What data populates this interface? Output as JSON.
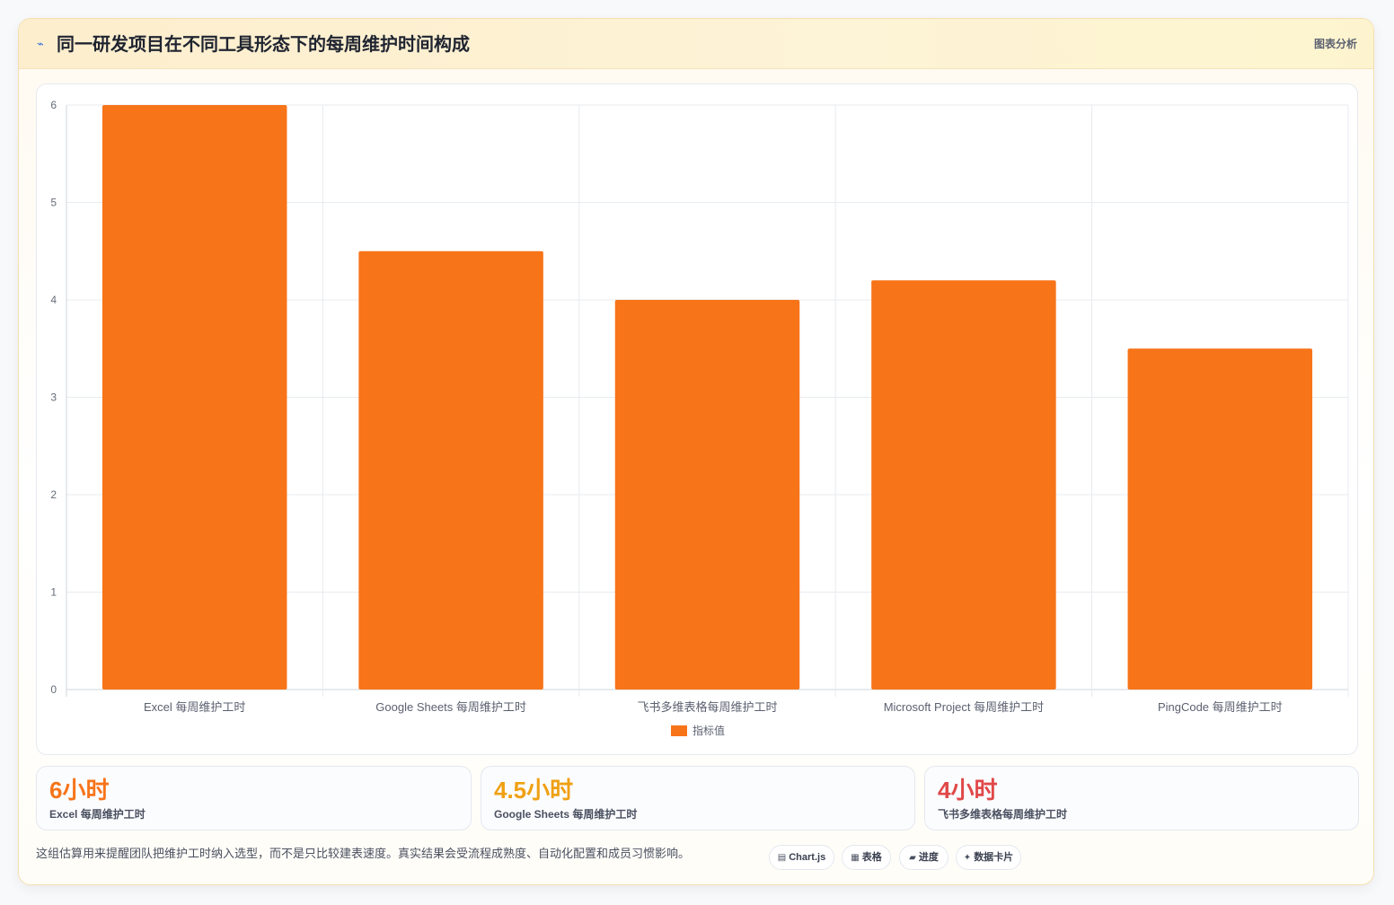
{
  "header": {
    "icon": "chart-line-icon",
    "icon_glyph": "⌁",
    "title": "同一研发项目在不同工具形态下的每周维护时间构成",
    "tag": "图表分析"
  },
  "chart_data": {
    "type": "bar",
    "categories": [
      "Excel 每周维护工时",
      "Google Sheets 每周维护工时",
      "飞书多维表格每周维护工时",
      "Microsoft Project 每周维护工时",
      "PingCode 每周维护工时"
    ],
    "series": [
      {
        "name": "指标值",
        "values": [
          6,
          4.5,
          4,
          4.2,
          3.5
        ],
        "color": "#f77419"
      }
    ],
    "ylim": [
      0,
      6
    ],
    "yticks": [
      0,
      1,
      2,
      3,
      4,
      5,
      6
    ],
    "grid": true,
    "legend": "bottom"
  },
  "stats": [
    {
      "value": "6小时",
      "label": "Excel 每周维护工时",
      "color": "#f77419"
    },
    {
      "value": "4.5小时",
      "label": "Google Sheets 每周维护工时",
      "color": "#f0a012"
    },
    {
      "value": "4小时",
      "label": "飞书多维表格每周维护工时",
      "color": "#e04848"
    }
  ],
  "footnote": "这组估算用来提醒团队把维护工时纳入选型，而不是只比较建表速度。真实结果会受流程成熟度、自动化配置和成员习惯影响。",
  "chips": [
    {
      "icon": "table-icon",
      "glyph": "▤",
      "label": "Chart.js"
    },
    {
      "icon": "grid-icon",
      "glyph": "▦",
      "label": "表格"
    },
    {
      "icon": "progress-icon",
      "glyph": "▰",
      "label": "进度"
    },
    {
      "icon": "sparkle-icon",
      "glyph": "✦",
      "label": "数据卡片"
    }
  ]
}
